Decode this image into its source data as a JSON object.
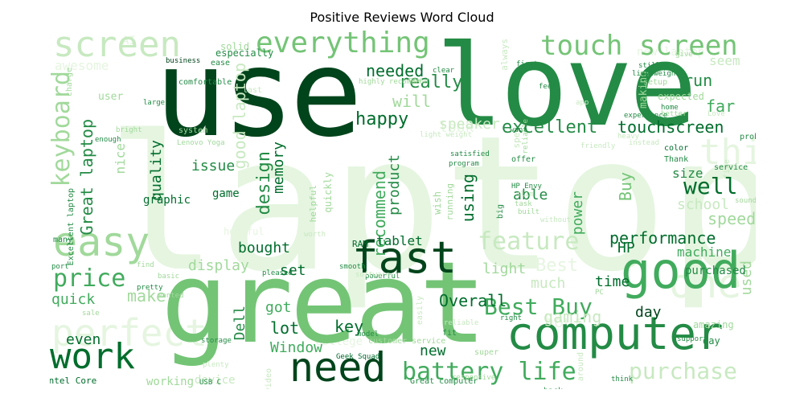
{
  "title": "Positive Reviews Word Cloud",
  "colors": {
    "darkest": "#00441b",
    "dark": "#006d2c",
    "mid": "#238b45",
    "midlight": "#41ab5d",
    "light": "#74c476",
    "lighter": "#a1d99b",
    "pale": "#c7e9c0",
    "palest": "#e5f5e0"
  },
  "words": [
    "laptop",
    "use",
    "love",
    "great",
    "screen",
    "everything",
    "touch screen",
    "easy",
    "fast",
    "good",
    "computer",
    "need",
    "work",
    "keyboard",
    "nice",
    "needed",
    "really",
    "will",
    "happy",
    "excellent",
    "touchscreen",
    "thing",
    "run",
    "far",
    "feature",
    "performance",
    "HP",
    "machine",
    "price",
    "perfect",
    "Best Buy",
    "battery life",
    "purchase",
    "one",
    "well",
    "size",
    "speed",
    "school",
    "Great laptop",
    "quality",
    "issue",
    "design",
    "memory",
    "recommend",
    "product",
    "using",
    "able",
    "Buy",
    "graphic",
    "game",
    "power",
    "bought",
    "display",
    "set",
    "tablet",
    "RAM",
    "light",
    "Best",
    "much",
    "time",
    "purchased",
    "day",
    "make",
    "quick",
    "used",
    "got",
    "lot",
    "key",
    "Dell",
    "Overall",
    "Window",
    "even",
    "new",
    "gaming",
    "hour",
    "working",
    "device",
    "amazing",
    "awesome",
    "solid",
    "good laptop",
    "especially",
    "business",
    "ease",
    "clear",
    "now",
    "first",
    "give",
    "still",
    "lightweight",
    "seem",
    "expected",
    "home",
    "better",
    "making",
    "problem",
    "color",
    "Thank",
    "service",
    "sound",
    "setup",
    "experience",
    "app",
    "feel",
    "look",
    "want",
    "speaker",
    "comfortable",
    "system",
    "Lenovo Yoga",
    "Excellent laptop",
    "charge",
    "bright",
    "enough",
    "user",
    "large",
    "highly recommend",
    "Geek Squad",
    "customer service",
    "Great computer",
    "Intel Core",
    "sale",
    "basic",
    "wanted",
    "pretty",
    "port",
    "many",
    "way",
    "find",
    "pleased",
    "powerful",
    "smooth",
    "software",
    "PC",
    "right",
    "fit",
    "model",
    "reliable",
    "super",
    "back",
    "think",
    "support",
    "helpful",
    "quickly",
    "wish",
    "running",
    "responsive",
    "storage",
    "plenty",
    "USB C",
    "HP Envy",
    "offer",
    "big",
    "satisfied",
    "program",
    "AI",
    "new laptop",
    "task",
    "easily",
    "college",
    "slim",
    "built",
    "without",
    "spec",
    "last",
    "always",
    "fine",
    "around",
    "video",
    "heavy",
    "light weight",
    "friendly",
    "instead",
    "worth",
    "Love",
    "nothing",
    "daily",
    "without issue",
    "long",
    "love laptop"
  ]
}
